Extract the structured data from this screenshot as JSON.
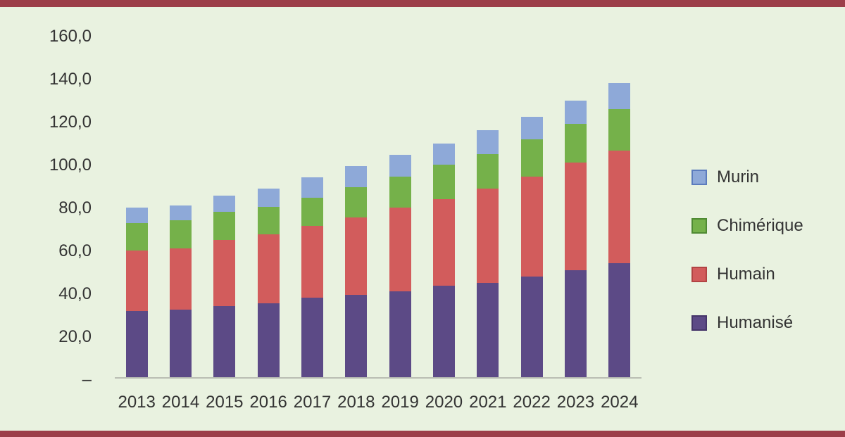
{
  "page": {
    "background_color": "#e9f2e0",
    "border_color": "#9c3e49",
    "text_color": "#333333"
  },
  "chart_data": {
    "type": "bar",
    "stacked": true,
    "title": "",
    "xlabel": "",
    "ylabel": "",
    "ylim": [
      0,
      160
    ],
    "grid": false,
    "legend_position": "right",
    "categories": [
      "2013",
      "2014",
      "2015",
      "2016",
      "2017",
      "2018",
      "2019",
      "2020",
      "2021",
      "2022",
      "2023",
      "2024"
    ],
    "y_tick_labels": [
      "160,0",
      "140,0",
      "120,0",
      "100,0",
      "80,0",
      "60,0",
      "40,0",
      "20,0",
      "–"
    ],
    "series": [
      {
        "name": "Humanisé",
        "color": "#5c4a86",
        "border_color": "#453569",
        "values": [
          31,
          31.5,
          33,
          34.5,
          37,
          38.5,
          40,
          42.5,
          44,
          47,
          50,
          53
        ]
      },
      {
        "name": "Humain",
        "color": "#d25c5c",
        "border_color": "#b24444",
        "values": [
          28,
          28.5,
          31,
          32,
          33.5,
          36,
          39,
          40.5,
          44,
          46.5,
          50,
          52.5
        ]
      },
      {
        "name": "Chimérique",
        "color": "#75b14a",
        "border_color": "#4f8a33",
        "values": [
          13,
          13,
          13,
          13,
          13,
          14,
          14.5,
          16,
          16,
          17.5,
          18,
          19.5
        ]
      },
      {
        "name": "Murin",
        "color": "#8ea9d8",
        "border_color": "#5c7cbd",
        "values": [
          7,
          7,
          7.5,
          8.5,
          9.5,
          10,
          10,
          10,
          11,
          10.5,
          11,
          12
        ]
      }
    ],
    "legend_order": [
      "Murin",
      "Chimérique",
      "Humain",
      "Humanisé"
    ]
  }
}
